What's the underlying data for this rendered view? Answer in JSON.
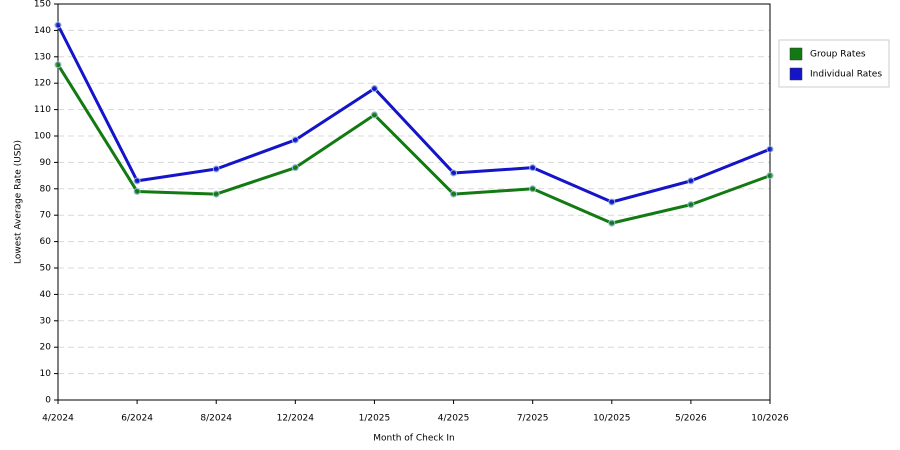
{
  "chart_data": {
    "type": "line",
    "x_label": "Month of Check In",
    "y_label": "Lowest Average Rate (USD)",
    "categories": [
      "4/2024",
      "6/2024",
      "8/2024",
      "12/2024",
      "1/2025",
      "4/2025",
      "7/2025",
      "10/2025",
      "5/2026",
      "10/2026"
    ],
    "series": [
      {
        "name": "Group Rates",
        "color": "#137a13",
        "values": [
          127,
          79,
          78,
          88,
          108,
          78,
          80,
          67,
          74,
          85
        ]
      },
      {
        "name": "Individual Rates",
        "color": "#1414c8",
        "values": [
          142,
          83,
          87.5,
          98.5,
          118,
          86,
          88,
          75,
          83,
          95
        ]
      }
    ],
    "ylim": [
      0,
      150
    ],
    "yticks": [
      0,
      10,
      20,
      30,
      40,
      50,
      60,
      70,
      80,
      90,
      100,
      110,
      120,
      130,
      140,
      150
    ],
    "grid": true,
    "legend": "right"
  }
}
